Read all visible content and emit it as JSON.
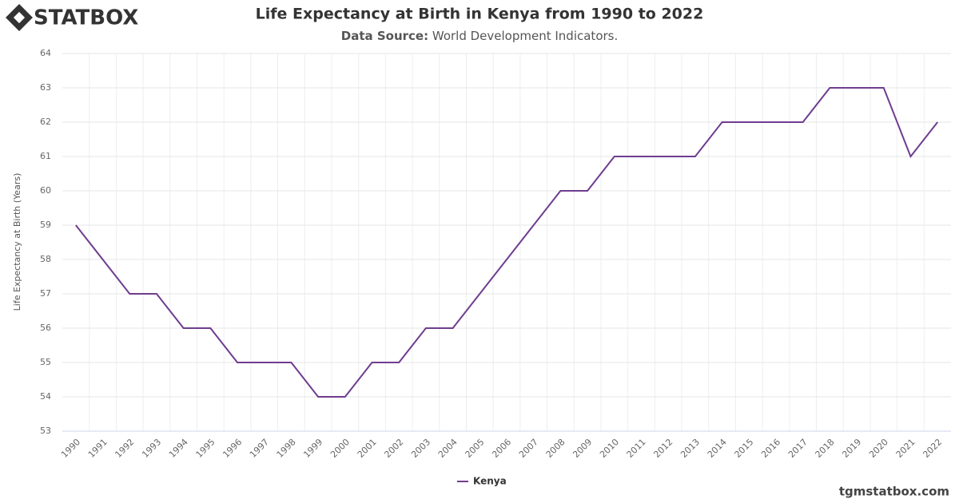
{
  "brand": "STATBOX",
  "footer": "tgmstatbox.com",
  "chart_data": {
    "type": "line",
    "title": "Life Expectancy at Birth in Kenya from 1990 to 2022",
    "subtitle_label": "Data Source:",
    "subtitle_text": "World Development Indicators.",
    "y_label": "Life Expectancy at Birth (Years)",
    "categories": [
      "1990",
      "1991",
      "1992",
      "1993",
      "1994",
      "1995",
      "1996",
      "1997",
      "1998",
      "1999",
      "2000",
      "2001",
      "2002",
      "2003",
      "2004",
      "2005",
      "2006",
      "2007",
      "2008",
      "2009",
      "2010",
      "2011",
      "2012",
      "2013",
      "2014",
      "2015",
      "2016",
      "2017",
      "2018",
      "2019",
      "2020",
      "2021",
      "2022"
    ],
    "series": [
      {
        "name": "Kenya",
        "color": "#6f3c8f",
        "values": [
          59,
          58,
          57,
          57,
          56,
          56,
          55,
          55,
          55,
          54,
          54,
          55,
          55,
          56,
          56,
          57,
          58,
          59,
          60,
          60,
          61,
          61,
          61,
          61,
          62,
          62,
          62,
          62,
          63,
          63,
          63,
          61,
          62
        ]
      }
    ],
    "ylim": [
      53,
      64
    ],
    "yticks": [
      53,
      54,
      55,
      56,
      57,
      58,
      59,
      60,
      61,
      62,
      63,
      64
    ],
    "grid": true,
    "legend": "bottom"
  }
}
